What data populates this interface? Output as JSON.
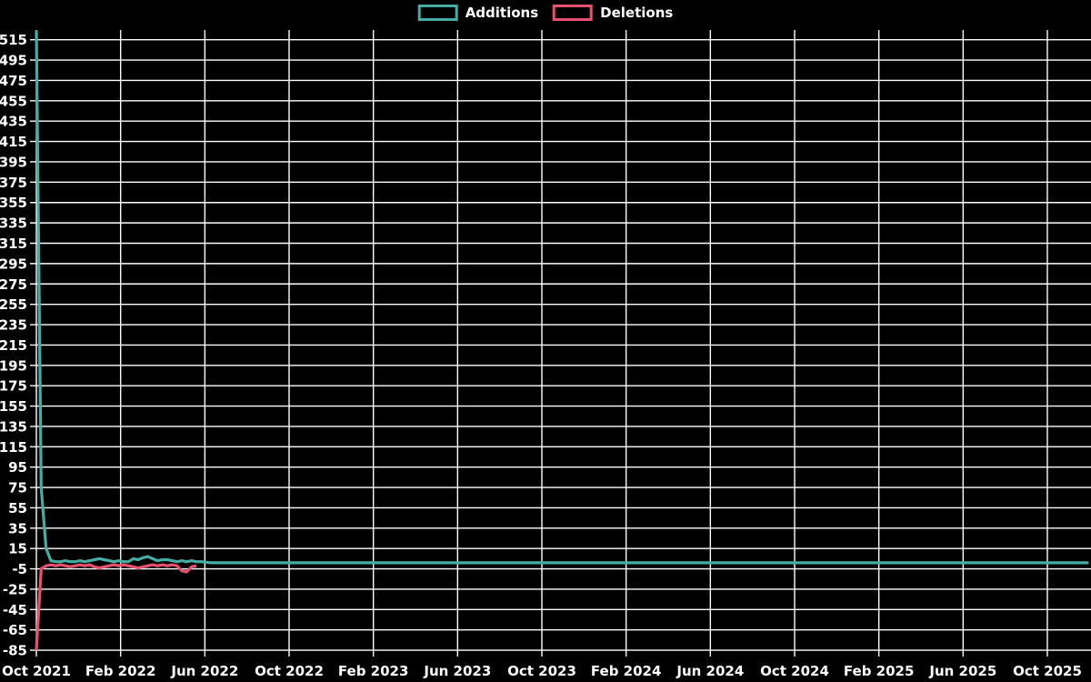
{
  "chart_data": {
    "type": "line",
    "title": "",
    "legend_position": "top-center",
    "grid": true,
    "background_color": "#000000",
    "grid_color": "#ffffff",
    "text_color": "#ffffff",
    "x_axis": {
      "tick_labels": [
        "Oct 2021",
        "Feb 2022",
        "Jun 2022",
        "Oct 2022",
        "Feb 2023",
        "Jun 2023",
        "Oct 2023",
        "Feb 2024",
        "Jun 2024",
        "Oct 2024",
        "Feb 2025",
        "Jun 2025",
        "Oct 2025"
      ],
      "range_note": "weekly data starting Oct 2021, plot extends slightly past Oct 2025"
    },
    "y_axis": {
      "min": -85,
      "max": 515,
      "step": 20,
      "tick_labels": [
        "515",
        "495",
        "475",
        "455",
        "435",
        "415",
        "395",
        "375",
        "355",
        "335",
        "315",
        "295",
        "275",
        "255",
        "235",
        "215",
        "195",
        "175",
        "155",
        "135",
        "115",
        "95",
        "75",
        "55",
        "35",
        "15",
        "-5",
        "-25",
        "-45",
        "-65",
        "-85"
      ]
    },
    "series": [
      {
        "name": "Additions",
        "color": "#45ada4",
        "cadence": "weekly",
        "start_week_label": "Oct 2021",
        "values": [
          524,
          75,
          15,
          3,
          2,
          2,
          3,
          2,
          2,
          3,
          2,
          3,
          4,
          5,
          4,
          3,
          2,
          3,
          2,
          2,
          5,
          4,
          6,
          7,
          5,
          3,
          4,
          4,
          3,
          2,
          3,
          2,
          3,
          2,
          2
        ],
        "tail": {
          "from_week": 36,
          "to_week": 217,
          "value": 1
        }
      },
      {
        "name": "Deletions",
        "color": "#e8506e",
        "cadence": "weekly",
        "start_week_label": "Oct 2021",
        "values": [
          -85,
          -5,
          -2,
          -1,
          -2,
          -1,
          -2,
          -3,
          -2,
          -1,
          -2,
          -1,
          -3,
          -4,
          -3,
          -2,
          -1,
          -2,
          -1,
          -2,
          -3,
          -4,
          -3,
          -2,
          -1,
          -2,
          -1,
          -2,
          -1,
          -2,
          -7,
          -8,
          -3,
          -2
        ]
      }
    ]
  }
}
